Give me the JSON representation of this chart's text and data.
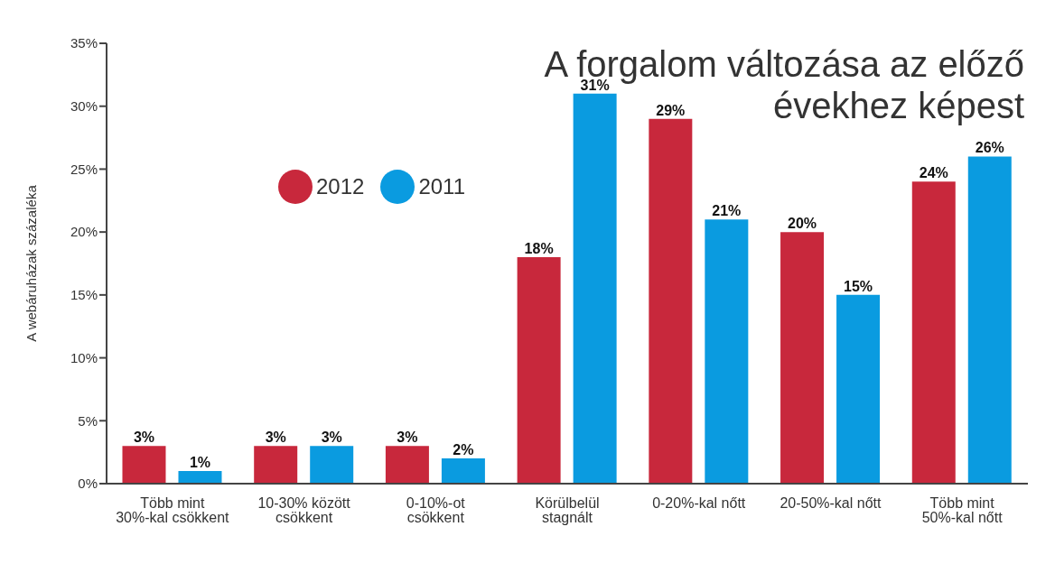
{
  "chart_data": {
    "type": "bar",
    "title": "A forgalom változása az előző évekhez képest",
    "ylabel": "A webáruházak százaléka",
    "categories": [
      "Több mint 30%-kal csökkent",
      "10-30% között csökkent",
      "0-10%-ot csökkent",
      "Körülbelül stagnált",
      "0-20%-kal nőtt",
      "20-50%-kal nőtt",
      "Több mint 50%-kal nőtt"
    ],
    "series": [
      {
        "name": "2012",
        "color": "#c8283c",
        "values": [
          3,
          3,
          3,
          18,
          29,
          20,
          24
        ],
        "value_labels": [
          "3%",
          "3%",
          "3%",
          "18%",
          "29%",
          "20%",
          "24%"
        ]
      },
      {
        "name": "2011",
        "color": "#0a9be0",
        "values": [
          1,
          3,
          2,
          31,
          21,
          15,
          26
        ],
        "value_labels": [
          "1%",
          "3%",
          "2%",
          "31%",
          "21%",
          "15%",
          "26%"
        ]
      }
    ],
    "ylim": [
      0,
      35
    ],
    "yticks": [
      {
        "value": 0,
        "label": "0%"
      },
      {
        "value": 5,
        "label": "5%"
      },
      {
        "value": 10,
        "label": "10%"
      },
      {
        "value": 15,
        "label": "15%"
      },
      {
        "value": 20,
        "label": "20%"
      },
      {
        "value": 25,
        "label": "25%"
      },
      {
        "value": 30,
        "label": "30%"
      },
      {
        "value": 35,
        "label": "35%"
      }
    ],
    "grid": false,
    "legend": "top left"
  }
}
